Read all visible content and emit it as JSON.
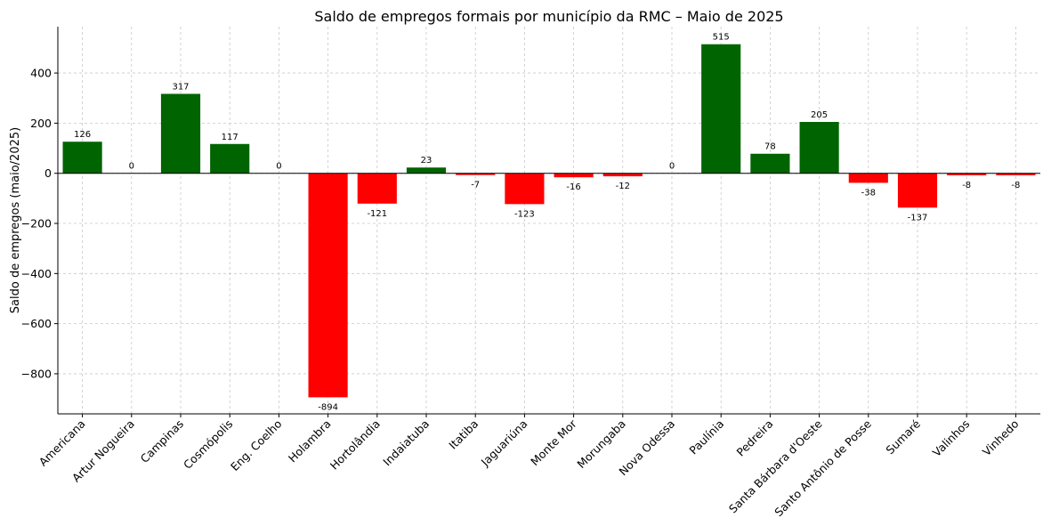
{
  "chart_data": {
    "type": "bar",
    "title": "Saldo de empregos formais por município da RMC – Maio de 2025",
    "xlabel": "",
    "ylabel": "Saldo de empregos (maio/2025)",
    "categories": [
      "Americana",
      "Artur Nogueira",
      "Campinas",
      "Cosmópolis",
      "Eng. Coelho",
      "Holambra",
      "Hortolândia",
      "Indaiatuba",
      "Itatiba",
      "Jaguariúna",
      "Monte Mor",
      "Morungaba",
      "Nova Odessa",
      "Paulínia",
      "Pedreira",
      "Santa Bárbara d'Oeste",
      "Santo Antônio de Posse",
      "Sumaré",
      "Valinhos",
      "Vinhedo"
    ],
    "values": [
      126,
      0,
      317,
      117,
      0,
      -894,
      -121,
      23,
      -7,
      -123,
      -16,
      -12,
      0,
      515,
      78,
      205,
      -38,
      -137,
      -8,
      -8
    ],
    "value_labels": [
      "126",
      "0",
      "317",
      "117",
      "0",
      "-894",
      "-121",
      "23",
      "-7",
      "-123",
      "-16",
      "-12",
      "0",
      "515",
      "78",
      "205",
      "-38",
      "-137",
      "-8",
      "-8"
    ],
    "ylim": [
      -960,
      585
    ],
    "yticks": [
      -800,
      -600,
      -400,
      -200,
      0,
      200,
      400
    ],
    "ytick_labels": [
      "−800",
      "−600",
      "−400",
      "−200",
      "0",
      "200",
      "400"
    ],
    "grid": true,
    "colors": {
      "positive": "#006400",
      "negative": "#ff0000"
    }
  }
}
